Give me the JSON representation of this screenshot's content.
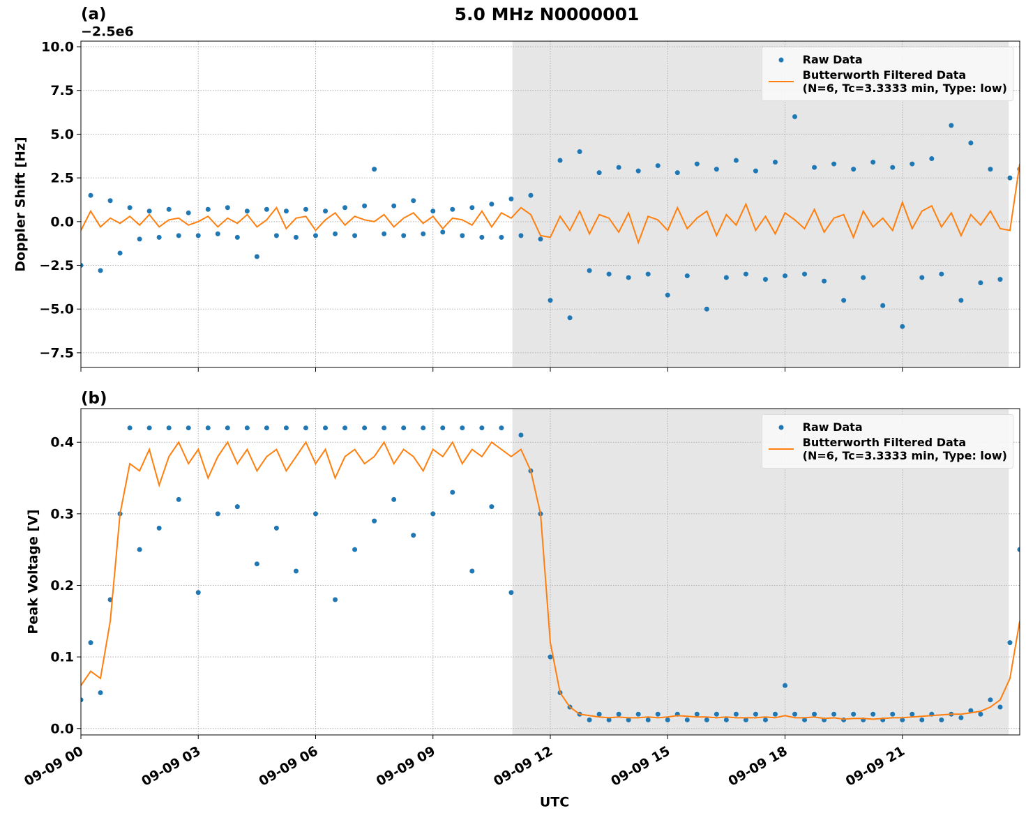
{
  "title": "5.0 MHz N0000001",
  "chart_data": [
    {
      "type": "line",
      "panel_label": "(a)",
      "offset_text": "−2.5e6",
      "ylabel": "Doppler Shift [Hz]",
      "xlim": [
        0,
        24
      ],
      "ylim": [
        -8.34,
        10.32
      ],
      "grid": true,
      "legend": "upper right",
      "shaded_region": [
        11.03,
        23.72
      ],
      "xticks": [
        0,
        3,
        6,
        9,
        12,
        15,
        18,
        21
      ],
      "yticks": [
        {
          "value": -7.5,
          "label": "−7.5"
        },
        {
          "value": -5.0,
          "label": "−5.0"
        },
        {
          "value": -2.5,
          "label": "−2.5"
        },
        {
          "value": 0.0,
          "label": "0.0"
        },
        {
          "value": 2.5,
          "label": "2.5"
        },
        {
          "value": 5.0,
          "label": "5.0"
        },
        {
          "value": 7.5,
          "label": "7.5"
        },
        {
          "value": 10.0,
          "label": "10.0"
        }
      ],
      "x": [
        0,
        0.25,
        0.5,
        0.75,
        1,
        1.25,
        1.5,
        1.75,
        2,
        2.25,
        2.5,
        2.75,
        3,
        3.25,
        3.5,
        3.75,
        4,
        4.25,
        4.5,
        4.75,
        5,
        5.25,
        5.5,
        5.75,
        6,
        6.25,
        6.5,
        6.75,
        7,
        7.25,
        7.5,
        7.75,
        8,
        8.25,
        8.5,
        8.75,
        9,
        9.25,
        9.5,
        9.75,
        10,
        10.25,
        10.5,
        10.75,
        11,
        11.25,
        11.5,
        11.75,
        12,
        12.25,
        12.5,
        12.75,
        13,
        13.25,
        13.5,
        13.75,
        14,
        14.25,
        14.5,
        14.75,
        15,
        15.25,
        15.5,
        15.75,
        16,
        16.25,
        16.5,
        16.75,
        17,
        17.25,
        17.5,
        17.75,
        18,
        18.25,
        18.5,
        18.75,
        19,
        19.25,
        19.5,
        19.75,
        20,
        20.25,
        20.5,
        20.75,
        21,
        21.25,
        21.5,
        21.75,
        22,
        22.25,
        22.5,
        22.75,
        23,
        23.25,
        23.5,
        23.75,
        24
      ],
      "series": [
        {
          "name": "Raw Data",
          "type": "scatter",
          "color": "#1f77b4",
          "values": [
            -2.5,
            1.5,
            -2.8,
            1.2,
            -1.8,
            0.8,
            -1.0,
            0.6,
            -0.9,
            0.7,
            -0.8,
            0.5,
            -0.8,
            0.7,
            -0.7,
            0.8,
            -0.9,
            0.6,
            -2.0,
            0.7,
            -0.8,
            0.6,
            -0.9,
            0.7,
            -0.8,
            0.6,
            -0.7,
            0.8,
            -0.8,
            0.9,
            3.0,
            -0.7,
            0.9,
            -0.8,
            1.2,
            -0.7,
            0.6,
            -0.6,
            0.7,
            -0.8,
            0.8,
            -0.9,
            1.0,
            -0.9,
            1.3,
            -0.8,
            1.5,
            -1.0,
            -4.5,
            3.5,
            -5.5,
            4.0,
            -2.8,
            2.8,
            -3.0,
            3.1,
            -3.2,
            2.9,
            -3.0,
            3.2,
            -4.2,
            2.8,
            -3.1,
            3.3,
            -5.0,
            3.0,
            -3.2,
            3.5,
            -3.0,
            2.9,
            -3.3,
            3.4,
            -3.1,
            6.0,
            -3.0,
            3.1,
            -3.4,
            3.3,
            -4.5,
            3.0,
            -3.2,
            3.4,
            -4.8,
            3.1,
            -6.0,
            3.3,
            -3.2,
            3.6,
            -3.0,
            5.5,
            -4.5,
            4.5,
            -3.5,
            3.0,
            -3.3,
            2.5,
            3.0
          ]
        },
        {
          "name": "Butterworth Filtered Data\n(N=6, Tc=3.3333 min, Type: low)",
          "type": "line",
          "color": "#ff7f0e",
          "values": [
            -0.5,
            0.6,
            -0.3,
            0.2,
            -0.1,
            0.3,
            -0.2,
            0.4,
            -0.3,
            0.1,
            0.2,
            -0.2,
            0.0,
            0.3,
            -0.3,
            0.2,
            -0.1,
            0.4,
            -0.3,
            0.1,
            0.8,
            -0.4,
            0.2,
            0.3,
            -0.5,
            0.1,
            0.5,
            -0.2,
            0.3,
            0.1,
            0.0,
            0.4,
            -0.3,
            0.2,
            0.5,
            -0.1,
            0.3,
            -0.4,
            0.2,
            0.1,
            -0.2,
            0.6,
            -0.3,
            0.5,
            0.2,
            0.8,
            0.4,
            -0.8,
            -0.9,
            0.3,
            -0.5,
            0.6,
            -0.7,
            0.4,
            0.2,
            -0.6,
            0.5,
            -1.2,
            0.3,
            0.1,
            -0.5,
            0.8,
            -0.4,
            0.2,
            0.6,
            -0.8,
            0.4,
            -0.2,
            1.0,
            -0.5,
            0.3,
            -0.7,
            0.5,
            0.1,
            -0.4,
            0.7,
            -0.6,
            0.2,
            0.4,
            -0.9,
            0.6,
            -0.3,
            0.2,
            -0.5,
            1.1,
            -0.4,
            0.6,
            0.9,
            -0.3,
            0.5,
            -0.8,
            0.4,
            -0.2,
            0.6,
            -0.4,
            -0.5,
            3.3
          ]
        }
      ]
    },
    {
      "type": "line",
      "panel_label": "(b)",
      "ylabel": "Peak Voltage [V]",
      "xlabel": "UTC",
      "xlim": [
        0,
        24
      ],
      "ylim": [
        -0.009,
        0.447
      ],
      "grid": true,
      "legend": "upper right",
      "shaded_region": [
        11.03,
        23.72
      ],
      "xticks": [
        {
          "value": 0,
          "label": "09-09 00"
        },
        {
          "value": 3,
          "label": "09-09 03"
        },
        {
          "value": 6,
          "label": "09-09 06"
        },
        {
          "value": 9,
          "label": "09-09 09"
        },
        {
          "value": 12,
          "label": "09-09 12"
        },
        {
          "value": 15,
          "label": "09-09 15"
        },
        {
          "value": 18,
          "label": "09-09 18"
        },
        {
          "value": 21,
          "label": "09-09 21"
        }
      ],
      "yticks": [
        {
          "value": 0.0,
          "label": "0.0"
        },
        0.1,
        0.2,
        0.3,
        0.4
      ],
      "x": [
        0,
        0.25,
        0.5,
        0.75,
        1,
        1.25,
        1.5,
        1.75,
        2,
        2.25,
        2.5,
        2.75,
        3,
        3.25,
        3.5,
        3.75,
        4,
        4.25,
        4.5,
        4.75,
        5,
        5.25,
        5.5,
        5.75,
        6,
        6.25,
        6.5,
        6.75,
        7,
        7.25,
        7.5,
        7.75,
        8,
        8.25,
        8.5,
        8.75,
        9,
        9.25,
        9.5,
        9.75,
        10,
        10.25,
        10.5,
        10.75,
        11,
        11.25,
        11.5,
        11.75,
        12,
        12.25,
        12.5,
        12.75,
        13,
        13.25,
        13.5,
        13.75,
        14,
        14.25,
        14.5,
        14.75,
        15,
        15.25,
        15.5,
        15.75,
        16,
        16.25,
        16.5,
        16.75,
        17,
        17.25,
        17.5,
        17.75,
        18,
        18.25,
        18.5,
        18.75,
        19,
        19.25,
        19.5,
        19.75,
        20,
        20.25,
        20.5,
        20.75,
        21,
        21.25,
        21.5,
        21.75,
        22,
        22.25,
        22.5,
        22.75,
        23,
        23.25,
        23.5,
        23.75,
        24
      ],
      "series": [
        {
          "name": "Raw Data",
          "type": "scatter",
          "color": "#1f77b4",
          "values": [
            0.04,
            0.12,
            0.05,
            0.18,
            0.3,
            0.42,
            0.25,
            0.42,
            0.28,
            0.42,
            0.32,
            0.42,
            0.19,
            0.42,
            0.3,
            0.42,
            0.31,
            0.42,
            0.23,
            0.42,
            0.28,
            0.42,
            0.22,
            0.42,
            0.3,
            0.42,
            0.18,
            0.42,
            0.25,
            0.42,
            0.29,
            0.42,
            0.32,
            0.42,
            0.27,
            0.42,
            0.3,
            0.42,
            0.33,
            0.42,
            0.22,
            0.42,
            0.31,
            0.42,
            0.19,
            0.41,
            0.36,
            0.3,
            0.1,
            0.05,
            0.03,
            0.02,
            0.012,
            0.02,
            0.012,
            0.02,
            0.012,
            0.02,
            0.012,
            0.02,
            0.012,
            0.02,
            0.012,
            0.02,
            0.012,
            0.02,
            0.012,
            0.02,
            0.012,
            0.02,
            0.012,
            0.02,
            0.06,
            0.02,
            0.012,
            0.02,
            0.012,
            0.02,
            0.012,
            0.02,
            0.012,
            0.02,
            0.012,
            0.02,
            0.012,
            0.02,
            0.012,
            0.02,
            0.012,
            0.02,
            0.015,
            0.025,
            0.02,
            0.04,
            0.03,
            0.12,
            0.25
          ]
        },
        {
          "name": "Butterworth Filtered Data\n(N=6, Tc=3.3333 min, Type: low)",
          "type": "line",
          "color": "#ff7f0e",
          "values": [
            0.06,
            0.08,
            0.07,
            0.15,
            0.3,
            0.37,
            0.36,
            0.39,
            0.34,
            0.38,
            0.4,
            0.37,
            0.39,
            0.35,
            0.38,
            0.4,
            0.37,
            0.39,
            0.36,
            0.38,
            0.39,
            0.36,
            0.38,
            0.4,
            0.37,
            0.39,
            0.35,
            0.38,
            0.39,
            0.37,
            0.38,
            0.4,
            0.37,
            0.39,
            0.38,
            0.36,
            0.39,
            0.38,
            0.4,
            0.37,
            0.39,
            0.38,
            0.4,
            0.39,
            0.38,
            0.39,
            0.36,
            0.3,
            0.12,
            0.05,
            0.03,
            0.02,
            0.018,
            0.016,
            0.015,
            0.016,
            0.015,
            0.015,
            0.016,
            0.015,
            0.016,
            0.018,
            0.017,
            0.016,
            0.016,
            0.015,
            0.016,
            0.015,
            0.015,
            0.015,
            0.016,
            0.015,
            0.018,
            0.015,
            0.015,
            0.016,
            0.014,
            0.015,
            0.013,
            0.014,
            0.014,
            0.013,
            0.014,
            0.015,
            0.015,
            0.016,
            0.017,
            0.018,
            0.019,
            0.02,
            0.02,
            0.022,
            0.024,
            0.03,
            0.04,
            0.07,
            0.15
          ]
        }
      ]
    }
  ]
}
